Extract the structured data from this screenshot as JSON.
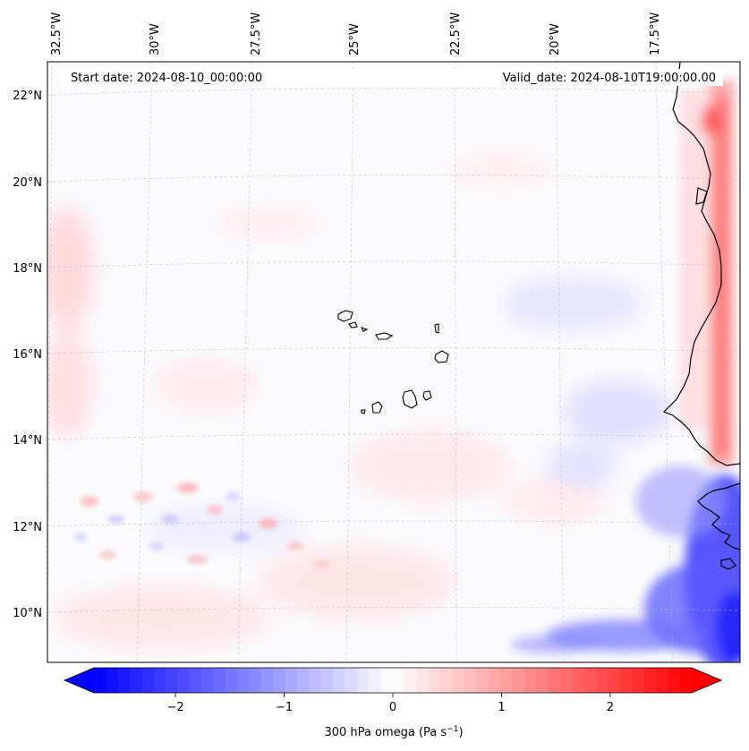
{
  "map": {
    "start_label": "Start date: 2024-08-10_00:00:00",
    "valid_label": "Valid_date: 2024-08-10T19:00:00.00",
    "lon_labels": [
      "32.5°W",
      "30°W",
      "27.5°W",
      "25°W",
      "22.5°W",
      "20°W",
      "17.5°W"
    ],
    "lat_labels": [
      "22°N",
      "20°N",
      "18°N",
      "16°N",
      "14°N",
      "12°N",
      "10°N"
    ],
    "field": "300 hPa omega",
    "features": [
      "Cabo Verde islands",
      "West African coastline",
      "strong ascent (blue) over Senegal/Guinea coast",
      "strong descent (red) strip along Mauritanian coast"
    ]
  },
  "colorbar": {
    "label_main": "300 hPa omega (Pa s",
    "label_exp": "−1",
    "label_close": ")",
    "ticks": [
      "−2",
      "−1",
      "0",
      "1",
      "2"
    ],
    "min": -2.75,
    "max": 2.75,
    "colors": {
      "negative": "#0000ff",
      "zero": "#ffffff",
      "positive": "#ff0000"
    }
  }
}
